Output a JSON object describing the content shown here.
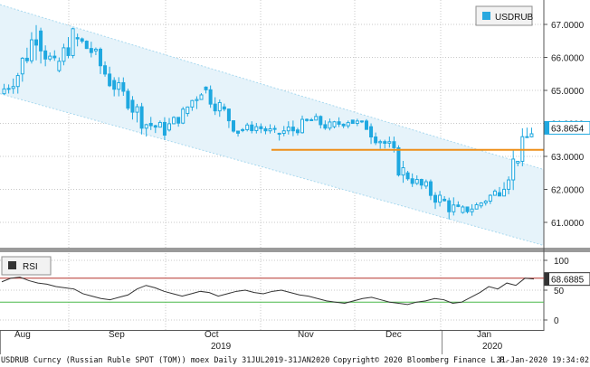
{
  "chart_data": [
    {
      "type": "candlestick",
      "panel": "main",
      "legend": {
        "label": "USDRUB",
        "position": "top-right",
        "color": "#29a8df"
      },
      "ylim": [
        60.2,
        67.6
      ],
      "yticks": [
        "67.0000",
        "66.0000",
        "65.0000",
        "64.0000",
        "63.0000",
        "62.0000",
        "61.0000"
      ],
      "last_value": "63.8654",
      "support_level": 63.2,
      "channel": {
        "upper_start": 67.6,
        "upper_end": 62.6,
        "lower_start": 64.9,
        "lower_end": 60.3
      },
      "weekly_ohlc": [
        [
          64.9,
          65.8,
          64.7,
          65.5
        ],
        [
          65.5,
          67.1,
          65.2,
          66.8
        ],
        [
          66.8,
          66.9,
          65.3,
          65.6
        ],
        [
          65.6,
          66.9,
          65.5,
          66.6
        ],
        [
          66.6,
          67.2,
          66.0,
          66.2
        ],
        [
          66.2,
          66.3,
          65.1,
          65.3
        ],
        [
          65.3,
          65.4,
          64.4,
          64.7
        ],
        [
          64.7,
          64.9,
          63.6,
          64.0
        ],
        [
          64.0,
          64.4,
          63.5,
          63.8
        ],
        [
          63.8,
          64.5,
          63.7,
          64.3
        ],
        [
          64.3,
          65.4,
          64.1,
          65.1
        ],
        [
          65.1,
          65.3,
          64.2,
          64.5
        ],
        [
          64.5,
          64.6,
          63.6,
          63.8
        ],
        [
          63.8,
          64.1,
          63.6,
          63.9
        ],
        [
          63.9,
          64.0,
          63.4,
          63.7
        ],
        [
          63.7,
          64.1,
          63.2,
          63.8
        ],
        [
          63.8,
          64.3,
          63.6,
          64.1
        ],
        [
          64.1,
          64.4,
          63.7,
          63.9
        ],
        [
          63.9,
          64.3,
          63.7,
          64.1
        ],
        [
          64.1,
          64.4,
          63.8,
          63.9
        ],
        [
          63.9,
          64.0,
          63.0,
          63.4
        ],
        [
          63.4,
          63.6,
          62.2,
          62.5
        ],
        [
          62.5,
          62.6,
          61.9,
          62.1
        ],
        [
          62.1,
          62.3,
          61.3,
          61.7
        ],
        [
          61.7,
          62.0,
          61.0,
          61.3
        ],
        [
          61.3,
          61.6,
          61.0,
          61.5
        ],
        [
          61.5,
          62.0,
          61.4,
          61.9
        ],
        [
          61.9,
          63.2,
          61.8,
          62.8
        ],
        [
          62.8,
          63.9,
          62.7,
          63.8
        ]
      ],
      "x_tick_labels": [
        "Aug",
        "Sep",
        "Oct",
        "Nov",
        "Dec",
        "Jan"
      ],
      "year_labels": [
        "2019",
        "2020"
      ]
    },
    {
      "type": "line",
      "panel": "rsi",
      "legend": {
        "label": "RSI",
        "position": "top-left",
        "color": "#333333"
      },
      "ylim": [
        -5,
        110
      ],
      "yticks": [
        "100",
        "50",
        "0"
      ],
      "overbought": 70,
      "oversold": 30,
      "last_value": "68.6885",
      "values": [
        64,
        70,
        72,
        66,
        62,
        60,
        56,
        54,
        52,
        44,
        40,
        36,
        34,
        38,
        42,
        52,
        58,
        54,
        48,
        44,
        40,
        44,
        48,
        46,
        40,
        44,
        48,
        50,
        46,
        44,
        48,
        50,
        46,
        42,
        40,
        36,
        32,
        30,
        28,
        32,
        36,
        38,
        34,
        30,
        28,
        26,
        30,
        32,
        36,
        34,
        28,
        30,
        38,
        46,
        56,
        52,
        62,
        58,
        70,
        68.6885
      ]
    }
  ],
  "footer": {
    "left": "USDRUB Curncy (Russian Ruble SPOT (TOM)) moex  Daily 31JUL2019-31JAN2020",
    "center": "Copyright© 2020 Bloomberg Finance L.P.",
    "right": "31-Jan-2020 19:34:02"
  },
  "colors": {
    "candle": "#1fa8e0",
    "channel_fill": "#e6f3fa",
    "channel_line": "#a9d9ef",
    "support": "#ee8f1a",
    "rsi_line": "#333333",
    "overbought": "#b5322d",
    "oversold": "#4ab84a",
    "panel_divider": "#9a9a9a",
    "grid": "#c8c8c8"
  }
}
